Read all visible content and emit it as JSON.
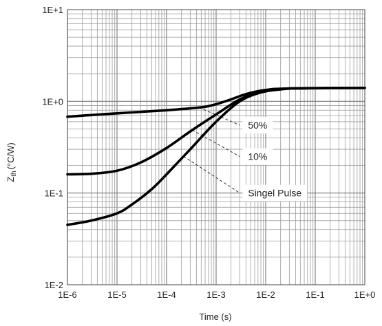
{
  "chart_data": {
    "type": "line",
    "x_scale": "log",
    "y_scale": "log",
    "xlim": [
      1e-06,
      1
    ],
    "ylim": [
      0.01,
      10
    ],
    "xlabel": "Time (s)",
    "ylabel_main": "Z",
    "ylabel_sub": "th",
    "ylabel_unit": "(°C/W)",
    "grid": true,
    "x_ticks": [
      {
        "v": 1e-06,
        "label": "1E-6"
      },
      {
        "v": 1e-05,
        "label": "1E-5"
      },
      {
        "v": 0.0001,
        "label": "1E-4"
      },
      {
        "v": 0.001,
        "label": "1E-3"
      },
      {
        "v": 0.01,
        "label": "1E-2"
      },
      {
        "v": 0.1,
        "label": "1E-1"
      },
      {
        "v": 1,
        "label": "1E+0"
      }
    ],
    "y_ticks": [
      {
        "v": 0.01,
        "label": "1E-2"
      },
      {
        "v": 0.1,
        "label": "1E-1"
      },
      {
        "v": 1,
        "label": "1E+0"
      },
      {
        "v": 10,
        "label": "1E+1"
      }
    ],
    "series": [
      {
        "name": "50%",
        "x": [
          1e-06,
          1e-05,
          0.0001,
          0.0005,
          0.001,
          0.002,
          0.004,
          0.01,
          0.03,
          1
        ],
        "y": [
          0.68,
          0.74,
          0.8,
          0.86,
          0.93,
          1.05,
          1.2,
          1.33,
          1.38,
          1.4
        ]
      },
      {
        "name": "10%",
        "x": [
          1e-06,
          3e-06,
          1e-05,
          3e-05,
          0.0001,
          0.0003,
          0.001,
          0.003,
          0.008,
          0.02,
          0.05,
          1
        ],
        "y": [
          0.16,
          0.162,
          0.175,
          0.215,
          0.31,
          0.47,
          0.72,
          1.05,
          1.28,
          1.36,
          1.39,
          1.4
        ]
      },
      {
        "name": "Singel Pulse",
        "x": [
          1e-06,
          3e-06,
          1e-05,
          2e-05,
          5e-05,
          0.0001,
          0.0003,
          0.001,
          0.003,
          0.008,
          0.02,
          0.05,
          1
        ],
        "y": [
          0.045,
          0.05,
          0.06,
          0.075,
          0.11,
          0.16,
          0.3,
          0.6,
          1.0,
          1.25,
          1.35,
          1.39,
          1.4
        ]
      }
    ],
    "annotations": [
      {
        "label": "50%",
        "series": "50%",
        "from_x": 0.00045,
        "to_x": 0.003,
        "to_y": 0.55
      },
      {
        "label": "10%",
        "series": "10%",
        "from_x": 0.00033,
        "to_x": 0.003,
        "to_y": 0.25
      },
      {
        "label": "Singel Pulse",
        "series": "Singel Pulse",
        "from_x": 0.00022,
        "to_x": 0.003,
        "to_y": 0.1
      }
    ]
  }
}
